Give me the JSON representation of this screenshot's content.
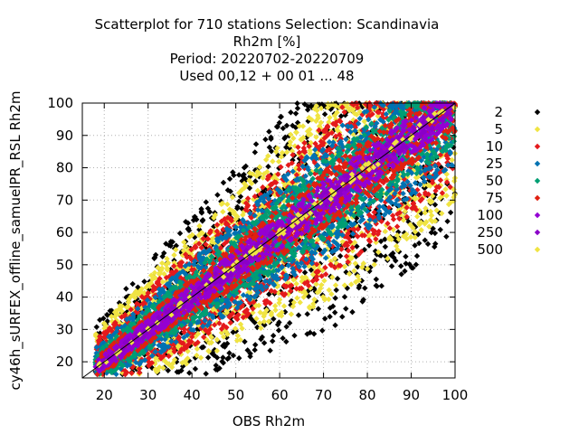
{
  "chart_data": {
    "type": "scatter",
    "title_lines": [
      "Scatterplot for  710 stations Selection: Scandinavia",
      "Rh2m [%]",
      "Period: 20220702-20220709",
      "Used  00,12  + 00 01 ... 48"
    ],
    "xlabel": "OBS Rh2m",
    "ylabel": "cy46h_sURFEX_offline_samuelPR_RSL Rh2m",
    "xlim": [
      15,
      100
    ],
    "ylim": [
      15,
      100
    ],
    "x_ticks": [
      20,
      30,
      40,
      50,
      60,
      70,
      80,
      90,
      100
    ],
    "y_ticks": [
      20,
      30,
      40,
      50,
      60,
      70,
      80,
      90,
      100
    ],
    "grid": true,
    "legend_position": "right",
    "reference_line": "x = y",
    "series": [
      {
        "name": "2",
        "color": "#000000",
        "half_width": 42
      },
      {
        "name": "5",
        "color": "#f0e442",
        "half_width": 33
      },
      {
        "name": "10",
        "color": "#e41a1c",
        "half_width": 25
      },
      {
        "name": "25",
        "color": "#0072b2",
        "half_width": 19
      },
      {
        "name": "50",
        "color": "#009e73",
        "half_width": 13
      },
      {
        "name": "75",
        "color": "#e02010",
        "half_width": 9
      },
      {
        "name": "100",
        "color": "#9400d3",
        "half_width": 6
      },
      {
        "name": "250",
        "color": "#8a00c8",
        "half_width": 3
      },
      {
        "name": "500",
        "color": "#f0e442",
        "half_width": 1.5
      }
    ]
  }
}
